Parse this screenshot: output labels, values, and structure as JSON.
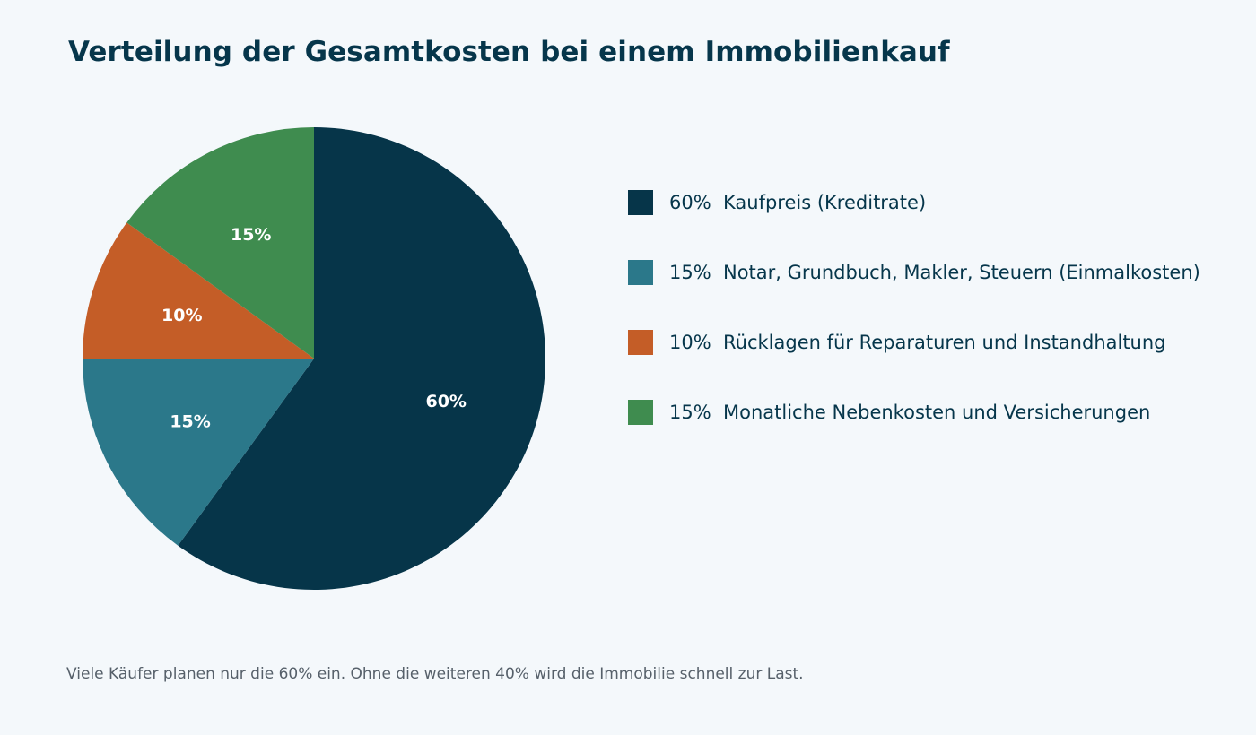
{
  "title": "Verteilung der Gesamtkosten bei einem Immobilienkauf",
  "footnote": "Viele Käufer planen nur die 60% ein. Ohne die weiteren 40% wird die Immobilie schnell zur Last.",
  "chart_data": {
    "type": "pie",
    "title": "Verteilung der Gesamtkosten bei einem Immobilienkauf",
    "start": "12 o'clock",
    "direction": "clockwise",
    "legend_position": "right",
    "slices": [
      {
        "label": "Kaufpreis (Kreditrate)",
        "value": 60,
        "display": "60%",
        "color": "#063549"
      },
      {
        "label": "Notar, Grundbuch, Makler, Steuern (Einmalkosten)",
        "value": 15,
        "display": "15%",
        "color": "#2b788a"
      },
      {
        "label": "Rücklagen für Reparaturen und Instandhaltung",
        "value": 10,
        "display": "10%",
        "color": "#c45d27"
      },
      {
        "label": "Monatliche Nebenkosten und Versicherungen",
        "value": 15,
        "display": "15%",
        "color": "#3f8c4f"
      }
    ]
  }
}
